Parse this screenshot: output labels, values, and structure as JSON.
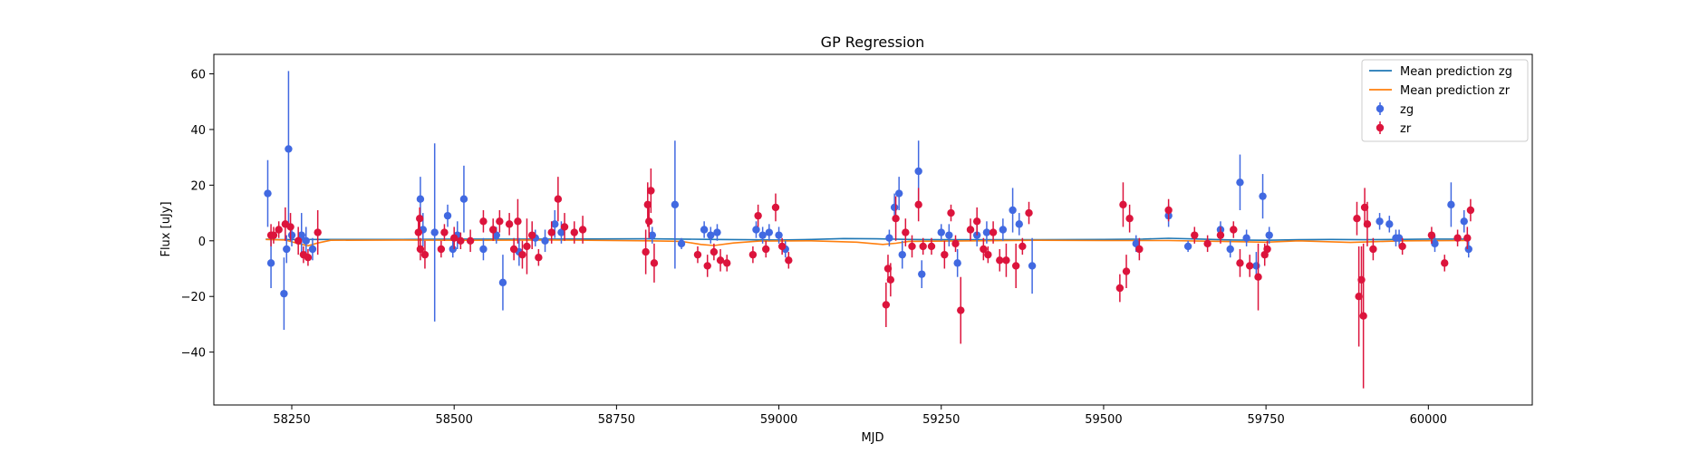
{
  "chart_data": {
    "type": "scatter",
    "title": "GP Regression",
    "xlabel": "MJD",
    "ylabel": "Flux [uJy]",
    "xlim": [
      58130,
      60160
    ],
    "ylim": [
      -59,
      67
    ],
    "xticks": [
      58250,
      58500,
      58750,
      59000,
      59250,
      59500,
      59750,
      60000
    ],
    "yticks": [
      -40,
      -20,
      0,
      20,
      40,
      60
    ],
    "legend_position": "top-right",
    "legend": [
      {
        "label": "Mean prediction zg",
        "kind": "line",
        "color": "#1f77b4"
      },
      {
        "label": "Mean prediction zr",
        "kind": "line",
        "color": "#ff7f0e"
      },
      {
        "label": "zg",
        "kind": "errorbar",
        "color": "#4169e1"
      },
      {
        "label": "zr",
        "kind": "errorbar",
        "color": "#dc143c"
      }
    ],
    "lines": [
      {
        "name": "Mean prediction zg",
        "color": "#1f77b4",
        "points": [
          [
            58210,
            0.6
          ],
          [
            58230,
            0.4
          ],
          [
            58260,
            0.5
          ],
          [
            58300,
            0.5
          ],
          [
            58420,
            0.5
          ],
          [
            58500,
            0.6
          ],
          [
            58650,
            0.6
          ],
          [
            58800,
            0.7
          ],
          [
            58850,
            0.6
          ],
          [
            58900,
            0.5
          ],
          [
            58950,
            0.4
          ],
          [
            59000,
            0.3
          ],
          [
            59050,
            0.5
          ],
          [
            59100,
            0.8
          ],
          [
            59150,
            0.7
          ],
          [
            59200,
            0.5
          ],
          [
            59250,
            0.4
          ],
          [
            59300,
            0.4
          ],
          [
            59400,
            0.4
          ],
          [
            59500,
            0.5
          ],
          [
            59560,
            0.6
          ],
          [
            59600,
            0.9
          ],
          [
            59650,
            0.6
          ],
          [
            59700,
            0.3
          ],
          [
            59750,
            0.2
          ],
          [
            59800,
            0.4
          ],
          [
            59850,
            0.5
          ],
          [
            59900,
            0.4
          ],
          [
            59950,
            0.5
          ],
          [
            60000,
            0.6
          ],
          [
            60060,
            0.6
          ]
        ]
      },
      {
        "name": "Mean prediction zr",
        "color": "#ff7f0e",
        "points": [
          [
            58210,
            0.5
          ],
          [
            58240,
            0.3
          ],
          [
            58260,
            -1.0
          ],
          [
            58275,
            -1.8
          ],
          [
            58290,
            -0.8
          ],
          [
            58310,
            0.2
          ],
          [
            58420,
            0.3
          ],
          [
            58500,
            0.2
          ],
          [
            58650,
            0.3
          ],
          [
            58800,
            0.0
          ],
          [
            58850,
            -0.2
          ],
          [
            58880,
            -1.3
          ],
          [
            58900,
            -1.7
          ],
          [
            58930,
            -0.8
          ],
          [
            58970,
            -0.1
          ],
          [
            59050,
            0.0
          ],
          [
            59120,
            -0.5
          ],
          [
            59160,
            -1.3
          ],
          [
            59180,
            -0.9
          ],
          [
            59200,
            -0.2
          ],
          [
            59300,
            0.0
          ],
          [
            59400,
            0.2
          ],
          [
            59500,
            0.1
          ],
          [
            59600,
            0.1
          ],
          [
            59700,
            -0.3
          ],
          [
            59750,
            -0.5
          ],
          [
            59800,
            0.0
          ],
          [
            59880,
            -0.6
          ],
          [
            59920,
            -0.3
          ],
          [
            59960,
            0.0
          ],
          [
            60060,
            0.1
          ]
        ]
      }
    ],
    "series": [
      {
        "name": "zg",
        "color": "#4169e1",
        "points": [
          [
            58213,
            17,
            12
          ],
          [
            58218,
            -8,
            9
          ],
          [
            58238,
            -19,
            13
          ],
          [
            58242,
            -3,
            5
          ],
          [
            58245,
            33,
            28
          ],
          [
            58250,
            2,
            4
          ],
          [
            58265,
            2,
            8
          ],
          [
            58272,
            0,
            5
          ],
          [
            58282,
            -3,
            4
          ],
          [
            58448,
            15,
            8
          ],
          [
            58452,
            4,
            6
          ],
          [
            58470,
            3,
            32
          ],
          [
            58490,
            9,
            4
          ],
          [
            58498,
            -3,
            3
          ],
          [
            58505,
            2,
            5
          ],
          [
            58515,
            15,
            12
          ],
          [
            58545,
            -3,
            4
          ],
          [
            58565,
            2,
            3
          ],
          [
            58575,
            -15,
            10
          ],
          [
            58600,
            -4,
            5
          ],
          [
            58625,
            1,
            3
          ],
          [
            58640,
            0,
            4
          ],
          [
            58655,
            6,
            5
          ],
          [
            58665,
            3,
            4
          ],
          [
            58805,
            2,
            3
          ],
          [
            58840,
            13,
            23
          ],
          [
            58850,
            -1,
            2
          ],
          [
            58885,
            4,
            3
          ],
          [
            58895,
            2,
            3
          ],
          [
            58905,
            3,
            3
          ],
          [
            58965,
            4,
            3
          ],
          [
            58975,
            2,
            3
          ],
          [
            58985,
            3,
            3
          ],
          [
            59000,
            2,
            3
          ],
          [
            59010,
            -3,
            3
          ],
          [
            59170,
            1,
            3
          ],
          [
            59178,
            12,
            5
          ],
          [
            59185,
            17,
            6
          ],
          [
            59190,
            -5,
            5
          ],
          [
            59215,
            25,
            11
          ],
          [
            59220,
            -12,
            5
          ],
          [
            59250,
            3,
            3
          ],
          [
            59262,
            2,
            4
          ],
          [
            59275,
            -8,
            5
          ],
          [
            59305,
            2,
            4
          ],
          [
            59320,
            3,
            4
          ],
          [
            59345,
            4,
            4
          ],
          [
            59360,
            11,
            8
          ],
          [
            59370,
            6,
            4
          ],
          [
            59390,
            -9,
            10
          ],
          [
            59550,
            -1,
            3
          ],
          [
            59600,
            9,
            4
          ],
          [
            59630,
            -2,
            2
          ],
          [
            59680,
            4,
            3
          ],
          [
            59695,
            -3,
            3
          ],
          [
            59710,
            21,
            10
          ],
          [
            59720,
            1,
            3
          ],
          [
            59735,
            -9,
            5
          ],
          [
            59745,
            16,
            8
          ],
          [
            59755,
            2,
            3
          ],
          [
            59925,
            7,
            3
          ],
          [
            59940,
            6,
            3
          ],
          [
            59950,
            1,
            3
          ],
          [
            59955,
            1,
            3
          ],
          [
            60010,
            -1,
            3
          ],
          [
            60035,
            13,
            8
          ],
          [
            60055,
            7,
            4
          ],
          [
            60062,
            -3,
            3
          ]
        ]
      },
      {
        "name": "zr",
        "color": "#dc143c",
        "points": [
          [
            58218,
            2,
            4
          ],
          [
            58222,
            2,
            3
          ],
          [
            58230,
            4,
            3
          ],
          [
            58240,
            6,
            6
          ],
          [
            58248,
            5,
            5
          ],
          [
            58260,
            0,
            5
          ],
          [
            58268,
            -5,
            3
          ],
          [
            58275,
            -6,
            3
          ],
          [
            58290,
            3,
            8
          ],
          [
            58445,
            3,
            5
          ],
          [
            58447,
            8,
            4
          ],
          [
            58448,
            -3,
            4
          ],
          [
            58455,
            -5,
            5
          ],
          [
            58480,
            -3,
            3
          ],
          [
            58485,
            3,
            3
          ],
          [
            58500,
            1,
            4
          ],
          [
            58510,
            0,
            3
          ],
          [
            58525,
            0,
            4
          ],
          [
            58545,
            7,
            4
          ],
          [
            58560,
            4,
            4
          ],
          [
            58570,
            7,
            4
          ],
          [
            58585,
            6,
            4
          ],
          [
            58592,
            -3,
            4
          ],
          [
            58598,
            7,
            8
          ],
          [
            58605,
            -5,
            5
          ],
          [
            58612,
            -2,
            10
          ],
          [
            58620,
            2,
            5
          ],
          [
            58630,
            -6,
            3
          ],
          [
            58650,
            3,
            4
          ],
          [
            58660,
            15,
            8
          ],
          [
            58670,
            5,
            5
          ],
          [
            58685,
            3,
            4
          ],
          [
            58698,
            4,
            5
          ],
          [
            58795,
            -4,
            8
          ],
          [
            58798,
            13,
            8
          ],
          [
            58800,
            7,
            6
          ],
          [
            58803,
            18,
            8
          ],
          [
            58808,
            -8,
            7
          ],
          [
            58875,
            -5,
            3
          ],
          [
            58890,
            -9,
            4
          ],
          [
            58900,
            -4,
            3
          ],
          [
            58910,
            -7,
            4
          ],
          [
            58920,
            -8,
            3
          ],
          [
            58960,
            -5,
            3
          ],
          [
            58968,
            9,
            4
          ],
          [
            58980,
            -3,
            3
          ],
          [
            58995,
            12,
            5
          ],
          [
            59005,
            -2,
            3
          ],
          [
            59015,
            -7,
            3
          ],
          [
            59165,
            -23,
            8
          ],
          [
            59168,
            -10,
            5
          ],
          [
            59172,
            -14,
            6
          ],
          [
            59180,
            8,
            8
          ],
          [
            59195,
            3,
            5
          ],
          [
            59205,
            -2,
            4
          ],
          [
            59215,
            13,
            6
          ],
          [
            59222,
            -2,
            3
          ],
          [
            59235,
            -2,
            3
          ],
          [
            59255,
            -5,
            5
          ],
          [
            59265,
            10,
            3
          ],
          [
            59272,
            -1,
            3
          ],
          [
            59280,
            -25,
            12
          ],
          [
            59295,
            4,
            4
          ],
          [
            59305,
            7,
            5
          ],
          [
            59315,
            -3,
            4
          ],
          [
            59322,
            -5,
            3
          ],
          [
            59330,
            3,
            4
          ],
          [
            59340,
            -7,
            4
          ],
          [
            59350,
            -7,
            6
          ],
          [
            59365,
            -9,
            8
          ],
          [
            59375,
            -2,
            3
          ],
          [
            59385,
            10,
            4
          ],
          [
            59525,
            -17,
            5
          ],
          [
            59530,
            13,
            8
          ],
          [
            59535,
            -11,
            6
          ],
          [
            59540,
            8,
            5
          ],
          [
            59555,
            -3,
            4
          ],
          [
            59600,
            11,
            4
          ],
          [
            59640,
            2,
            3
          ],
          [
            59660,
            -1,
            3
          ],
          [
            59680,
            2,
            3
          ],
          [
            59700,
            4,
            3
          ],
          [
            59710,
            -8,
            5
          ],
          [
            59725,
            -9,
            4
          ],
          [
            59738,
            -13,
            12
          ],
          [
            59748,
            -5,
            4
          ],
          [
            59752,
            -3,
            3
          ],
          [
            59890,
            8,
            6
          ],
          [
            59893,
            -20,
            18
          ],
          [
            59897,
            -14,
            12
          ],
          [
            59900,
            -27,
            26
          ],
          [
            59902,
            12,
            7
          ],
          [
            59906,
            6,
            8
          ],
          [
            59915,
            -3,
            4
          ],
          [
            59960,
            -2,
            3
          ],
          [
            60005,
            2,
            3
          ],
          [
            60025,
            -8,
            3
          ],
          [
            60045,
            1,
            3
          ],
          [
            60060,
            1,
            4
          ],
          [
            60065,
            11,
            4
          ]
        ]
      }
    ]
  }
}
